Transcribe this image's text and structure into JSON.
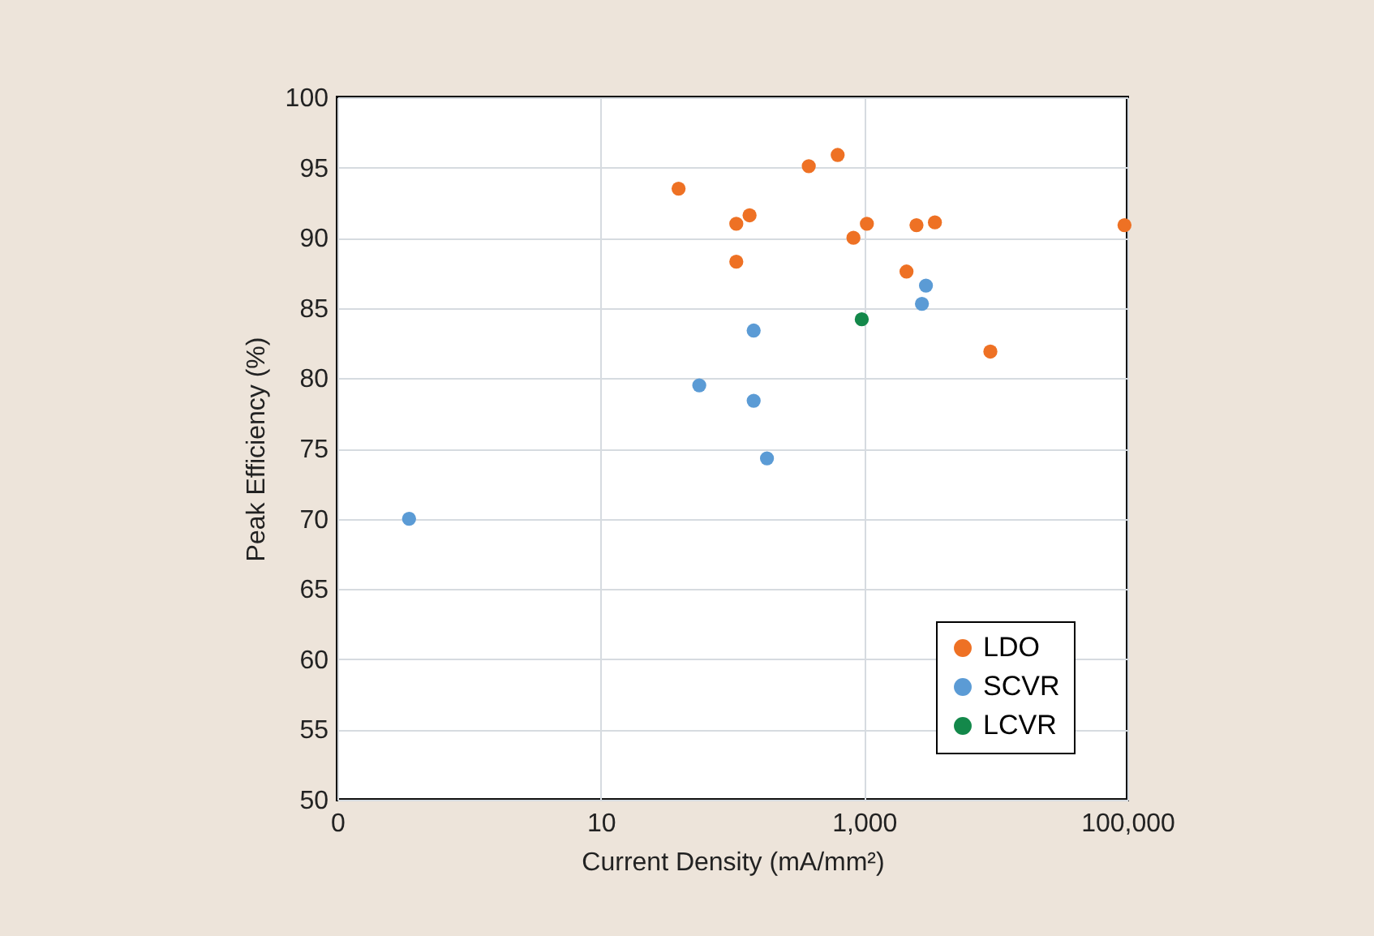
{
  "chart_data": {
    "type": "scatter",
    "xlabel": "Current Density (mA/mm²)",
    "ylabel": "Peak Efficiency (%)",
    "log": "x",
    "xlim": [
      0.1,
      100000
    ],
    "xticks": [
      {
        "value": 0.1,
        "label": "0"
      },
      10,
      {
        "value": 1000,
        "label": "1,000"
      },
      {
        "value": 100000,
        "label": "100,000"
      }
    ],
    "ylim": [
      50,
      100
    ],
    "yticks": [
      50,
      55,
      60,
      65,
      70,
      75,
      80,
      85,
      90,
      95,
      100
    ],
    "grid": true,
    "legend": "bottom right",
    "marker": "circle",
    "series": [
      {
        "name": "LDO",
        "color": "#ee7124",
        "x": [
          39,
          107,
          135,
          107,
          380,
          630,
          830,
          1050,
          2100,
          2500,
          3450,
          9100,
          95000
        ],
        "values": [
          93.5,
          91.0,
          91.6,
          88.3,
          95.1,
          95.9,
          90.0,
          91.0,
          87.6,
          90.9,
          91.1,
          81.9,
          90.9
        ]
      },
      {
        "name": "SCVR",
        "color": "#5b9bd5",
        "x": [
          2950,
          2750,
          145,
          56,
          145,
          183,
          0.35
        ],
        "values": [
          86.6,
          85.3,
          83.4,
          79.5,
          78.4,
          74.3,
          70.0
        ]
      },
      {
        "name": "LCVR",
        "color": "#13884a",
        "x": [
          960
        ],
        "values": [
          84.2
        ]
      }
    ]
  }
}
